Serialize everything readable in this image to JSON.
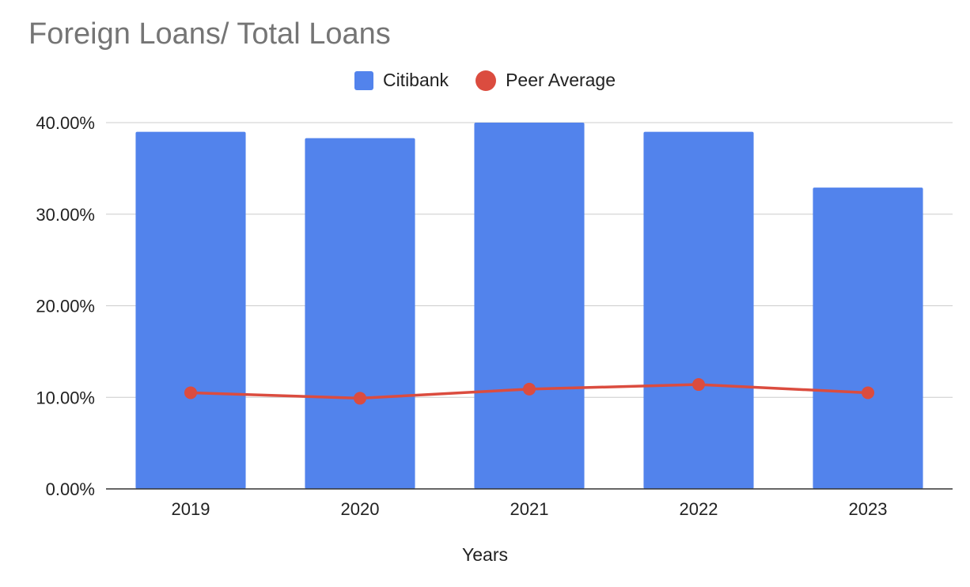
{
  "chart_data": {
    "type": "bar",
    "title": "Foreign Loans/ Total Loans",
    "xlabel": "Years",
    "ylabel": "",
    "categories": [
      "2019",
      "2020",
      "2021",
      "2022",
      "2023"
    ],
    "ylim": [
      0,
      40
    ],
    "yticks": [
      0,
      10,
      20,
      30,
      40
    ],
    "ytick_labels": [
      "0.00%",
      "10.00%",
      "20.00%",
      "30.00%",
      "40.00%"
    ],
    "grid": true,
    "legend_position": "top-center",
    "series": [
      {
        "name": "Citibank",
        "kind": "bar",
        "color": "#5283ec",
        "values": [
          39.0,
          38.3,
          40.0,
          39.0,
          32.9
        ]
      },
      {
        "name": "Peer Average",
        "kind": "line",
        "color": "#db4c3f",
        "values": [
          10.5,
          9.9,
          10.9,
          11.4,
          10.5
        ]
      }
    ]
  }
}
